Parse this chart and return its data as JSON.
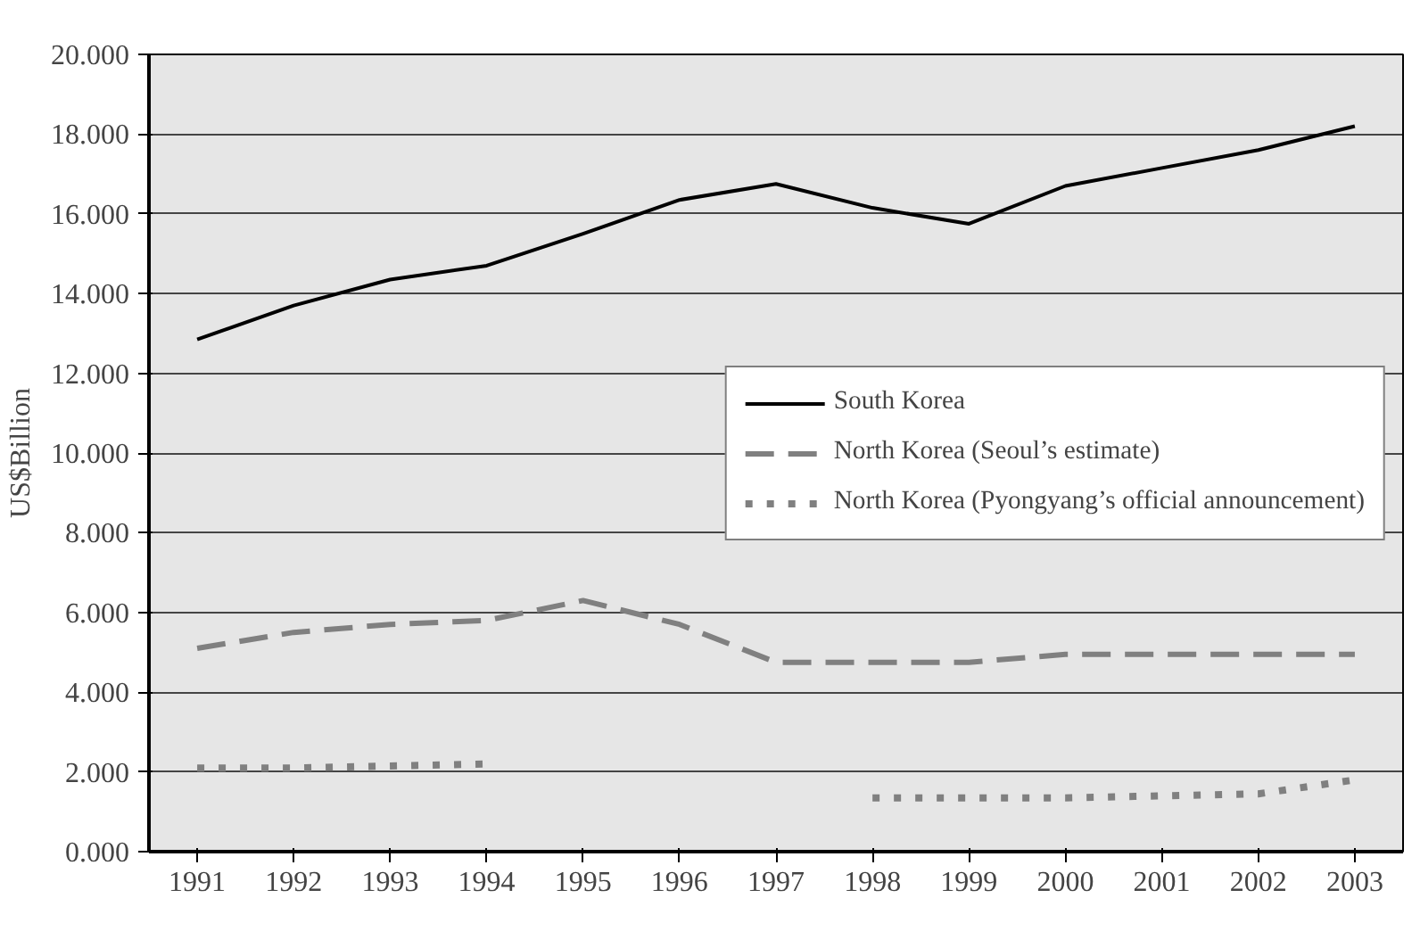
{
  "chart_data": {
    "type": "line",
    "ylabel": "US$Billion",
    "categories": [
      "1991",
      "1992",
      "1993",
      "1994",
      "1995",
      "1996",
      "1997",
      "1998",
      "1999",
      "2000",
      "2001",
      "2002",
      "2003"
    ],
    "series": [
      {
        "name": "South Korea",
        "color": "#000000",
        "line_style": "solid",
        "values": [
          12.85,
          13.7,
          14.35,
          14.7,
          15.5,
          16.35,
          16.75,
          16.15,
          15.75,
          16.7,
          17.15,
          17.6,
          18.2
        ]
      },
      {
        "name": "North Korea (Seoul’s estimate)",
        "color": "#808080",
        "line_style": "dashed",
        "values": [
          5.1,
          5.5,
          5.7,
          5.8,
          6.3,
          5.7,
          4.75,
          4.75,
          4.75,
          4.95,
          4.95,
          4.95,
          4.95
        ]
      },
      {
        "name": "North Korea (Pyongyang’s official announcement)",
        "color": "#808080",
        "line_style": "dotted",
        "values": [
          2.1,
          2.1,
          2.15,
          2.2,
          null,
          null,
          null,
          1.35,
          1.35,
          1.35,
          1.4,
          1.45,
          1.8
        ]
      }
    ],
    "ylim": [
      0,
      20
    ],
    "yticks": [
      {
        "value": 0,
        "label": "0.000"
      },
      {
        "value": 2,
        "label": "2.000"
      },
      {
        "value": 4,
        "label": "4.000"
      },
      {
        "value": 6,
        "label": "6.000"
      },
      {
        "value": 8,
        "label": "8.000"
      },
      {
        "value": 10,
        "label": "10.000"
      },
      {
        "value": 12,
        "label": "12.000"
      },
      {
        "value": 14,
        "label": "14.000"
      },
      {
        "value": 16,
        "label": "16.000"
      },
      {
        "value": 18,
        "label": "18.000"
      },
      {
        "value": 20,
        "label": "20.000"
      }
    ],
    "grid": "y",
    "legend": "right",
    "marker": "none"
  }
}
